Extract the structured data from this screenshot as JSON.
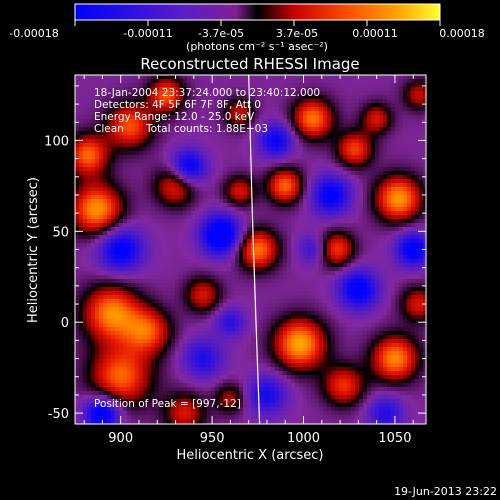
{
  "colorbar": {
    "ticks": [
      "-0.00018",
      "-0.00011",
      "-3.7e-05",
      "3.7e-05",
      "0.00011",
      "0.00018"
    ],
    "units": "(photons cm⁻² s⁻¹ asec⁻²)"
  },
  "chart_data": {
    "type": "heatmap",
    "title": "Reconstructed RHESSI Image",
    "xlabel": "Heliocentric X (arcsec)",
    "ylabel": "Heliocentric Y (arcsec)",
    "xlim": [
      875,
      1067
    ],
    "ylim": [
      -56,
      136
    ],
    "x_ticks": [
      900,
      950,
      1000,
      1050
    ],
    "y_ticks": [
      -50,
      0,
      50,
      100
    ],
    "x_tick_labels": [
      "900",
      "950",
      "1000",
      "1050"
    ],
    "y_tick_labels": [
      "-50",
      "0",
      "50",
      "100"
    ],
    "color_range": [
      -0.00018,
      0.00018
    ],
    "colormap": [
      "#0000ff",
      "#5a1ec8",
      "#a02da0",
      "#000000",
      "#c80000",
      "#ff5000",
      "#ffa000",
      "#ffff00"
    ],
    "annotations": {
      "line1": "18-Jan-2004 23:37:24.000 to 23:40:12.000",
      "line2": "Detectors: 4F 5F 6F 7F 8F, Att 0",
      "line3": "Energy Range: 12.0 - 25.0 keV",
      "line4_left": "Clean",
      "line4_right": "Total counts: 1.88E+03",
      "peak": "Position of Peak = [997,-12]"
    },
    "limb_line": [
      [
        970,
        136
      ],
      [
        972,
        60
      ],
      [
        974,
        0
      ],
      [
        976,
        -56
      ]
    ],
    "blobs": [
      {
        "x": 887,
        "y": 62,
        "amp": 1.0,
        "sigma": 10
      },
      {
        "x": 882,
        "y": 92,
        "amp": 0.85,
        "sigma": 8
      },
      {
        "x": 895,
        "y": 5,
        "amp": 0.95,
        "sigma": 11
      },
      {
        "x": 900,
        "y": -30,
        "amp": 0.85,
        "sigma": 12
      },
      {
        "x": 905,
        "y": 108,
        "amp": 0.8,
        "sigma": 9
      },
      {
        "x": 925,
        "y": 125,
        "amp": 0.8,
        "sigma": 7
      },
      {
        "x": 930,
        "y": 75,
        "amp": 0.7,
        "sigma": 8
      },
      {
        "x": 915,
        "y": -5,
        "amp": 0.75,
        "sigma": 9
      },
      {
        "x": 945,
        "y": 15,
        "amp": 0.6,
        "sigma": 7
      },
      {
        "x": 965,
        "y": 115,
        "amp": 0.55,
        "sigma": 6
      },
      {
        "x": 965,
        "y": 72,
        "amp": 0.6,
        "sigma": 6
      },
      {
        "x": 975,
        "y": 40,
        "amp": 0.9,
        "sigma": 8
      },
      {
        "x": 998,
        "y": -12,
        "amp": 1.05,
        "sigma": 10
      },
      {
        "x": 990,
        "y": 75,
        "amp": 0.85,
        "sigma": 7
      },
      {
        "x": 1005,
        "y": 112,
        "amp": 0.9,
        "sigma": 8
      },
      {
        "x": 1028,
        "y": 95,
        "amp": 0.75,
        "sigma": 7
      },
      {
        "x": 1018,
        "y": 40,
        "amp": 0.75,
        "sigma": 7
      },
      {
        "x": 1040,
        "y": 112,
        "amp": 0.6,
        "sigma": 6
      },
      {
        "x": 1052,
        "y": 68,
        "amp": 1.0,
        "sigma": 9
      },
      {
        "x": 1050,
        "y": -20,
        "amp": 0.95,
        "sigma": 9
      },
      {
        "x": 1022,
        "y": -35,
        "amp": 0.7,
        "sigma": 8
      },
      {
        "x": 935,
        "y": -50,
        "amp": 0.6,
        "sigma": 8
      },
      {
        "x": 960,
        "y": -42,
        "amp": 0.5,
        "sigma": 6
      },
      {
        "x": 1063,
        "y": 10,
        "amp": 0.6,
        "sigma": 7
      },
      {
        "x": 1063,
        "y": 125,
        "amp": 0.55,
        "sigma": 6
      },
      {
        "x": 890,
        "y": -50,
        "amp": -0.95,
        "sigma": 7
      },
      {
        "x": 900,
        "y": 40,
        "amp": -0.8,
        "sigma": 9
      },
      {
        "x": 937,
        "y": 85,
        "amp": -0.85,
        "sigma": 7
      },
      {
        "x": 955,
        "y": 48,
        "amp": -1.0,
        "sigma": 8
      },
      {
        "x": 985,
        "y": 100,
        "amp": -0.7,
        "sigma": 7
      },
      {
        "x": 1015,
        "y": 70,
        "amp": -0.75,
        "sigma": 8
      },
      {
        "x": 1030,
        "y": 18,
        "amp": -0.8,
        "sigma": 8
      },
      {
        "x": 1060,
        "y": 40,
        "amp": -0.8,
        "sigma": 7
      },
      {
        "x": 945,
        "y": -20,
        "amp": -0.55,
        "sigma": 8
      },
      {
        "x": 980,
        "y": -40,
        "amp": -0.6,
        "sigma": 8
      },
      {
        "x": 1045,
        "y": -50,
        "amp": -0.55,
        "sigma": 7
      },
      {
        "x": 960,
        "y": 0,
        "amp": -0.5,
        "sigma": 6
      },
      {
        "x": 1005,
        "y": 40,
        "amp": -0.45,
        "sigma": 6
      }
    ]
  },
  "footer": {
    "timestamp": "19-Jun-2013 23:22"
  }
}
